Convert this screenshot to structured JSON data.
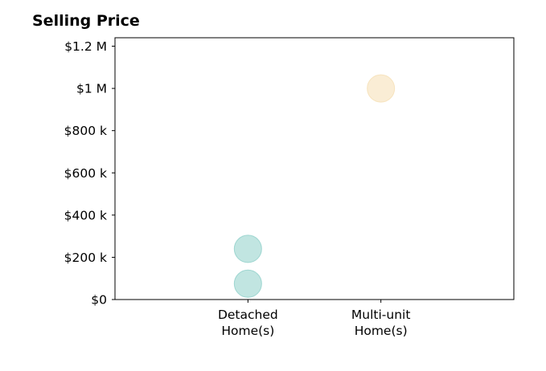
{
  "chart_data": {
    "type": "scatter",
    "title": "Selling Price",
    "xlabel": "",
    "ylabel": "",
    "categories": [
      [
        "Detached",
        "Home(s)"
      ],
      [
        "Multi-unit",
        "Home(s)"
      ]
    ],
    "xlim": [
      -1,
      2
    ],
    "ylim": [
      0,
      1240000
    ],
    "y_ticks": [
      0,
      200000,
      400000,
      600000,
      800000,
      1000000,
      1200000
    ],
    "y_tick_labels": [
      "$0",
      "$200 k",
      "$400 k",
      "$600 k",
      "$800 k",
      "$1 M",
      "$1.2 M"
    ],
    "grid": false,
    "points": [
      {
        "category_index": 0,
        "value": 240000,
        "color": "#8ecfc9"
      },
      {
        "category_index": 0,
        "value": 75000,
        "color": "#8ecfc9"
      },
      {
        "category_index": 1,
        "value": 1000000,
        "color": "#f5deb3"
      }
    ]
  }
}
